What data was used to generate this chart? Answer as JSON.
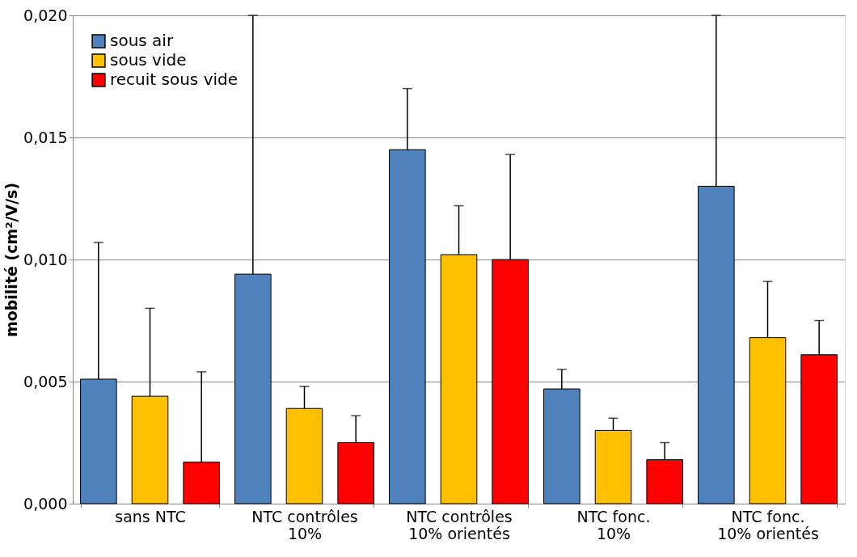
{
  "chart_data": {
    "type": "bar",
    "ylabel": "mobilité (cm²/V/s)",
    "categories": [
      "sans NTC",
      "NTC contrôles\n10%",
      "NTC contrôles\n10% orientés",
      "NTC fonc.\n10%",
      "NTC fonc.\n10% orientés"
    ],
    "series": [
      {
        "name": "sous air",
        "color": "#4f81bd",
        "values": [
          0.0051,
          0.0094,
          0.0145,
          0.0047,
          0.013
        ],
        "errors": [
          [
            0.0051,
            0.0107
          ],
          [
            0.0094,
            0.02
          ],
          [
            0.0145,
            0.017
          ],
          [
            0.0047,
            0.0055
          ],
          [
            0.013,
            0.02
          ]
        ]
      },
      {
        "name": "sous vide",
        "color": "#ffc000",
        "values": [
          0.0044,
          0.0039,
          0.0102,
          0.003,
          0.0068
        ],
        "errors": [
          [
            0.0044,
            0.008
          ],
          [
            0.0039,
            0.0048
          ],
          [
            0.0102,
            0.0122
          ],
          [
            0.003,
            0.0035
          ],
          [
            0.0068,
            0.0091
          ]
        ]
      },
      {
        "name": "recuit sous vide",
        "color": "#ff0000",
        "values": [
          0.0017,
          0.0025,
          0.01,
          0.0018,
          0.0061
        ],
        "errors": [
          [
            0.0017,
            0.0054
          ],
          [
            0.0025,
            0.0036
          ],
          [
            0.01,
            0.0143
          ],
          [
            0.0018,
            0.0025
          ],
          [
            0.0061,
            0.0075
          ]
        ]
      }
    ],
    "ylim": [
      0,
      0.02
    ],
    "yticks": [
      {
        "value": 0,
        "label": "0,000"
      },
      {
        "value": 0.005,
        "label": "0,005"
      },
      {
        "value": 0.01,
        "label": "0,010"
      },
      {
        "value": 0.015,
        "label": "0,015"
      },
      {
        "value": 0.02,
        "label": "0,020"
      }
    ],
    "grid": "y",
    "legend": "top left"
  }
}
